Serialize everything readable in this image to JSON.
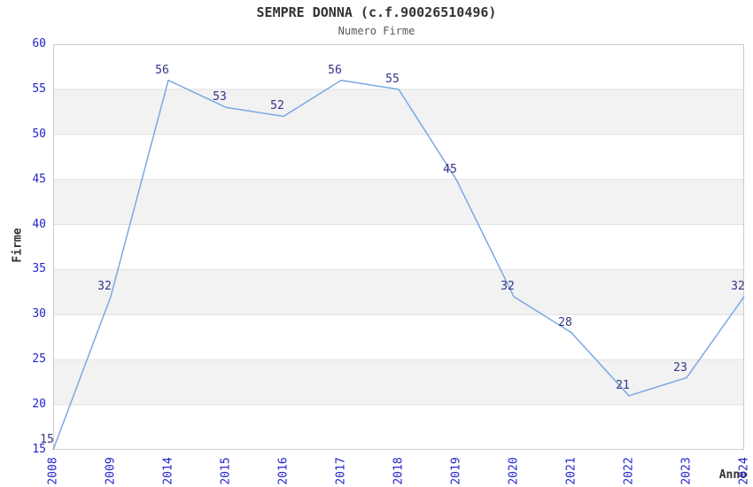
{
  "chart_data": {
    "type": "line",
    "title": "SEMPRE DONNA (c.f.90026510496)",
    "subtitle": "Numero Firme",
    "xlabel": "Anno",
    "ylabel": "Firme",
    "categories": [
      "2008",
      "2009",
      "2014",
      "2015",
      "2016",
      "2017",
      "2018",
      "2019",
      "2020",
      "2021",
      "2022",
      "2023",
      "2024"
    ],
    "values": [
      15,
      32,
      56,
      53,
      52,
      56,
      55,
      45,
      32,
      28,
      21,
      23,
      32
    ],
    "y_ticks": [
      15,
      20,
      25,
      30,
      35,
      40,
      45,
      50,
      55,
      60
    ],
    "ylim": [
      15,
      60
    ],
    "grid": true,
    "legend": "none",
    "shaded_bands": [
      [
        20,
        25
      ],
      [
        30,
        35
      ],
      [
        40,
        45
      ],
      [
        50,
        55
      ]
    ],
    "colors": {
      "line": "#79a9e3",
      "tick_label": "#2424cc",
      "data_label": "#333388",
      "band_fill": "#f2f2f2",
      "gridline": "#e0e0e0",
      "plot_border": "#cccccc",
      "title": "#333333",
      "subtitle": "#595959",
      "axis_title": "#333333",
      "background": "#ffffff"
    }
  }
}
